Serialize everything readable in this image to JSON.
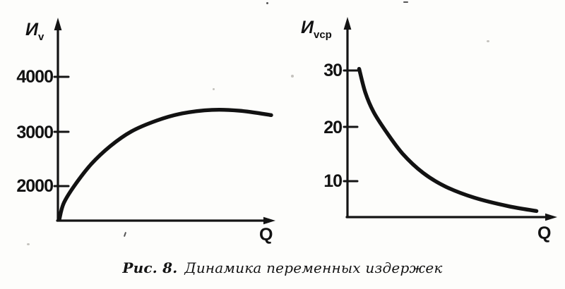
{
  "figure": {
    "caption_prefix": "Рис. 8.",
    "caption_text": "Динамика переменных издержек"
  },
  "chart_data": [
    {
      "type": "line",
      "title": "",
      "ylabel": "Иv",
      "ylabel_main": "И",
      "ylabel_sub": "v",
      "xlabel": "Q",
      "yticks": [
        2000,
        3000,
        4000
      ],
      "ylim": [
        1400,
        4600
      ],
      "xlim_normalized": [
        0,
        1
      ],
      "grid": false,
      "legend": null,
      "series": [
        {
          "name": "Иv",
          "points_format": "[x fraction of Q axis, Иv value]",
          "points": [
            [
              0,
              1390
            ],
            [
              0.02,
              1680
            ],
            [
              0.07,
              2000
            ],
            [
              0.15,
              2400
            ],
            [
              0.24,
              2730
            ],
            [
              0.34,
              3000
            ],
            [
              0.46,
              3200
            ],
            [
              0.58,
              3330
            ],
            [
              0.72,
              3395
            ],
            [
              0.85,
              3380
            ],
            [
              1,
              3300
            ]
          ]
        }
      ]
    },
    {
      "type": "line",
      "title": "",
      "ylabel": "Иvср",
      "ylabel_main": "И",
      "ylabel_sub": "vср",
      "xlabel": "Q",
      "yticks": [
        10,
        20,
        30
      ],
      "ylim": [
        3,
        33
      ],
      "xlim_normalized": [
        0,
        1
      ],
      "grid": false,
      "legend": null,
      "series": [
        {
          "name": "Иvср",
          "points_format": "[x fraction of Q axis, Иvср value]",
          "points": [
            [
              0.06,
              30.3
            ],
            [
              0.09,
              26
            ],
            [
              0.13,
              22.5
            ],
            [
              0.19,
              19
            ],
            [
              0.27,
              15
            ],
            [
              0.37,
              11.5
            ],
            [
              0.48,
              9
            ],
            [
              0.62,
              7
            ],
            [
              0.78,
              5.5
            ],
            [
              0.92,
              4.6
            ]
          ]
        }
      ]
    }
  ]
}
